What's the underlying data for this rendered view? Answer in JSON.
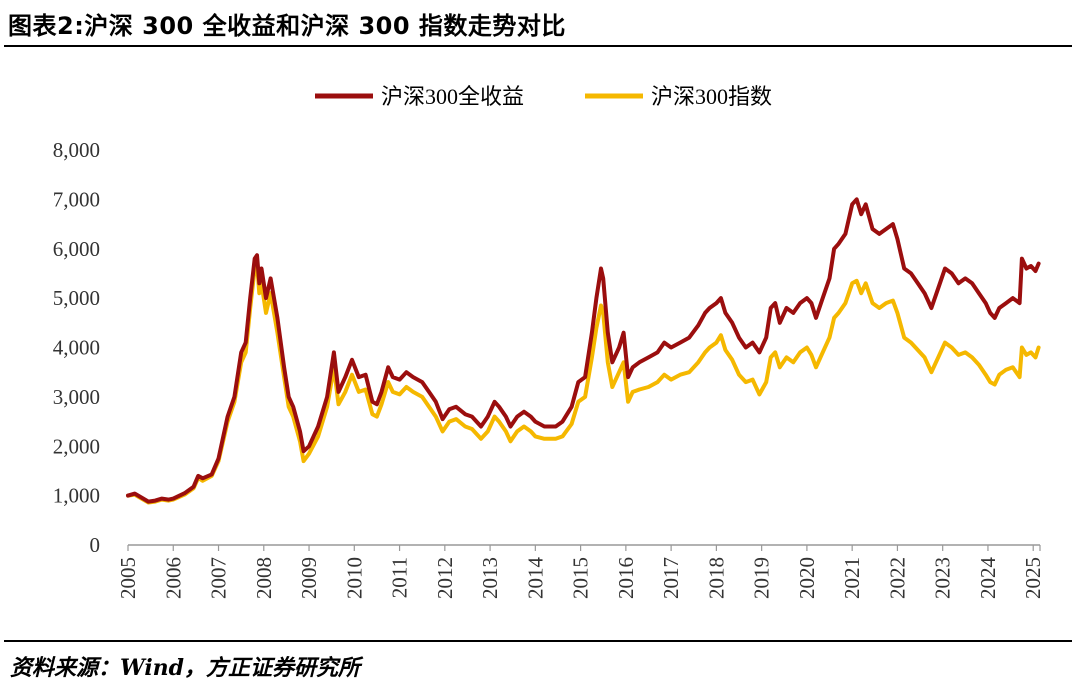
{
  "title": "图表2:沪深 300 全收益和沪深 300 指数走势对比",
  "source": "资料来源：Wind，方正证券研究所",
  "colors": {
    "total_return": "#9B0E0E",
    "index": "#F5B800",
    "axis": "#999999",
    "text": "#000000"
  },
  "chart_data": {
    "type": "line",
    "title": "沪深 300 全收益和沪深 300 指数走势对比",
    "xlabel": "",
    "ylabel": "",
    "xlim": [
      2005,
      2025.15
    ],
    "ylim": [
      0,
      8000
    ],
    "y_ticks": [
      "0",
      "1,000",
      "2,000",
      "3,000",
      "4,000",
      "5,000",
      "6,000",
      "7,000",
      "8,000"
    ],
    "x_ticks": [
      "2005",
      "2006",
      "2007",
      "2008",
      "2009",
      "2010",
      "2011",
      "2012",
      "2013",
      "2014",
      "2015",
      "2016",
      "2017",
      "2018",
      "2019",
      "2020",
      "2021",
      "2022",
      "2023",
      "2024",
      "2025"
    ],
    "legend": {
      "position": "top-center"
    },
    "series": [
      {
        "name": "沪深300全收益",
        "color": "#9B0E0E",
        "points": [
          [
            2005.0,
            1000
          ],
          [
            2005.15,
            1040
          ],
          [
            2005.3,
            960
          ],
          [
            2005.45,
            880
          ],
          [
            2005.6,
            900
          ],
          [
            2005.75,
            940
          ],
          [
            2005.9,
            920
          ],
          [
            2006.0,
            940
          ],
          [
            2006.25,
            1050
          ],
          [
            2006.45,
            1180
          ],
          [
            2006.55,
            1400
          ],
          [
            2006.65,
            1350
          ],
          [
            2006.85,
            1430
          ],
          [
            2007.0,
            1750
          ],
          [
            2007.2,
            2600
          ],
          [
            2007.35,
            3000
          ],
          [
            2007.5,
            3900
          ],
          [
            2007.6,
            4100
          ],
          [
            2007.7,
            5000
          ],
          [
            2007.8,
            5800
          ],
          [
            2007.85,
            5870
          ],
          [
            2007.9,
            5300
          ],
          [
            2007.95,
            5600
          ],
          [
            2008.05,
            5000
          ],
          [
            2008.15,
            5400
          ],
          [
            2008.3,
            4600
          ],
          [
            2008.45,
            3600
          ],
          [
            2008.55,
            3000
          ],
          [
            2008.65,
            2800
          ],
          [
            2008.8,
            2300
          ],
          [
            2008.88,
            1900
          ],
          [
            2009.0,
            2000
          ],
          [
            2009.2,
            2400
          ],
          [
            2009.4,
            3000
          ],
          [
            2009.55,
            3900
          ],
          [
            2009.65,
            3100
          ],
          [
            2009.8,
            3400
          ],
          [
            2009.95,
            3750
          ],
          [
            2010.1,
            3400
          ],
          [
            2010.25,
            3450
          ],
          [
            2010.4,
            2900
          ],
          [
            2010.5,
            2850
          ],
          [
            2010.6,
            3100
          ],
          [
            2010.75,
            3600
          ],
          [
            2010.85,
            3400
          ],
          [
            2011.0,
            3350
          ],
          [
            2011.15,
            3500
          ],
          [
            2011.3,
            3400
          ],
          [
            2011.5,
            3300
          ],
          [
            2011.65,
            3100
          ],
          [
            2011.8,
            2900
          ],
          [
            2011.95,
            2550
          ],
          [
            2012.1,
            2750
          ],
          [
            2012.25,
            2800
          ],
          [
            2012.45,
            2650
          ],
          [
            2012.6,
            2600
          ],
          [
            2012.8,
            2400
          ],
          [
            2012.95,
            2600
          ],
          [
            2013.1,
            2900
          ],
          [
            2013.2,
            2800
          ],
          [
            2013.35,
            2600
          ],
          [
            2013.45,
            2400
          ],
          [
            2013.6,
            2600
          ],
          [
            2013.75,
            2700
          ],
          [
            2013.9,
            2600
          ],
          [
            2014.0,
            2500
          ],
          [
            2014.2,
            2400
          ],
          [
            2014.45,
            2400
          ],
          [
            2014.6,
            2500
          ],
          [
            2014.8,
            2800
          ],
          [
            2014.95,
            3300
          ],
          [
            2015.1,
            3400
          ],
          [
            2015.25,
            4300
          ],
          [
            2015.35,
            5000
          ],
          [
            2015.45,
            5600
          ],
          [
            2015.5,
            5400
          ],
          [
            2015.6,
            4300
          ],
          [
            2015.7,
            3700
          ],
          [
            2015.85,
            4000
          ],
          [
            2015.95,
            4300
          ],
          [
            2016.05,
            3400
          ],
          [
            2016.15,
            3600
          ],
          [
            2016.3,
            3700
          ],
          [
            2016.5,
            3800
          ],
          [
            2016.7,
            3900
          ],
          [
            2016.85,
            4100
          ],
          [
            2017.0,
            4000
          ],
          [
            2017.2,
            4100
          ],
          [
            2017.4,
            4200
          ],
          [
            2017.6,
            4450
          ],
          [
            2017.75,
            4700
          ],
          [
            2017.85,
            4800
          ],
          [
            2018.0,
            4900
          ],
          [
            2018.1,
            5000
          ],
          [
            2018.2,
            4700
          ],
          [
            2018.35,
            4500
          ],
          [
            2018.5,
            4200
          ],
          [
            2018.65,
            4000
          ],
          [
            2018.8,
            4100
          ],
          [
            2018.95,
            3900
          ],
          [
            2019.1,
            4200
          ],
          [
            2019.2,
            4800
          ],
          [
            2019.3,
            4900
          ],
          [
            2019.4,
            4500
          ],
          [
            2019.55,
            4800
          ],
          [
            2019.7,
            4700
          ],
          [
            2019.85,
            4900
          ],
          [
            2020.0,
            5000
          ],
          [
            2020.1,
            4900
          ],
          [
            2020.2,
            4600
          ],
          [
            2020.35,
            5000
          ],
          [
            2020.5,
            5400
          ],
          [
            2020.6,
            6000
          ],
          [
            2020.7,
            6100
          ],
          [
            2020.85,
            6300
          ],
          [
            2021.0,
            6900
          ],
          [
            2021.1,
            7000
          ],
          [
            2021.2,
            6700
          ],
          [
            2021.3,
            6900
          ],
          [
            2021.45,
            6400
          ],
          [
            2021.6,
            6300
          ],
          [
            2021.75,
            6400
          ],
          [
            2021.9,
            6500
          ],
          [
            2022.0,
            6200
          ],
          [
            2022.15,
            5600
          ],
          [
            2022.3,
            5500
          ],
          [
            2022.45,
            5300
          ],
          [
            2022.6,
            5100
          ],
          [
            2022.75,
            4800
          ],
          [
            2022.9,
            5200
          ],
          [
            2023.05,
            5600
          ],
          [
            2023.2,
            5500
          ],
          [
            2023.35,
            5300
          ],
          [
            2023.5,
            5400
          ],
          [
            2023.65,
            5300
          ],
          [
            2023.8,
            5100
          ],
          [
            2023.95,
            4900
          ],
          [
            2024.05,
            4700
          ],
          [
            2024.15,
            4600
          ],
          [
            2024.25,
            4800
          ],
          [
            2024.4,
            4900
          ],
          [
            2024.55,
            5000
          ],
          [
            2024.7,
            4900
          ],
          [
            2024.75,
            5800
          ],
          [
            2024.85,
            5600
          ],
          [
            2024.95,
            5650
          ],
          [
            2025.05,
            5550
          ],
          [
            2025.12,
            5700
          ]
        ]
      },
      {
        "name": "沪深300指数",
        "color": "#F5B800",
        "points": [
          [
            2005.0,
            1000
          ],
          [
            2005.15,
            1020
          ],
          [
            2005.3,
            940
          ],
          [
            2005.45,
            860
          ],
          [
            2005.6,
            880
          ],
          [
            2005.75,
            920
          ],
          [
            2005.9,
            900
          ],
          [
            2006.0,
            920
          ],
          [
            2006.25,
            1020
          ],
          [
            2006.45,
            1150
          ],
          [
            2006.55,
            1360
          ],
          [
            2006.65,
            1300
          ],
          [
            2006.85,
            1400
          ],
          [
            2007.0,
            1700
          ],
          [
            2007.2,
            2500
          ],
          [
            2007.35,
            2900
          ],
          [
            2007.5,
            3700
          ],
          [
            2007.6,
            3900
          ],
          [
            2007.7,
            4800
          ],
          [
            2007.8,
            5600
          ],
          [
            2007.85,
            5700
          ],
          [
            2007.9,
            5100
          ],
          [
            2007.95,
            5300
          ],
          [
            2008.05,
            4700
          ],
          [
            2008.15,
            5100
          ],
          [
            2008.3,
            4300
          ],
          [
            2008.45,
            3400
          ],
          [
            2008.55,
            2800
          ],
          [
            2008.65,
            2600
          ],
          [
            2008.8,
            2100
          ],
          [
            2008.88,
            1700
          ],
          [
            2009.0,
            1850
          ],
          [
            2009.2,
            2200
          ],
          [
            2009.4,
            2800
          ],
          [
            2009.55,
            3600
          ],
          [
            2009.65,
            2850
          ],
          [
            2009.8,
            3100
          ],
          [
            2009.95,
            3450
          ],
          [
            2010.1,
            3100
          ],
          [
            2010.25,
            3150
          ],
          [
            2010.4,
            2650
          ],
          [
            2010.5,
            2600
          ],
          [
            2010.6,
            2850
          ],
          [
            2010.75,
            3300
          ],
          [
            2010.85,
            3100
          ],
          [
            2011.0,
            3050
          ],
          [
            2011.15,
            3200
          ],
          [
            2011.3,
            3100
          ],
          [
            2011.5,
            3000
          ],
          [
            2011.65,
            2800
          ],
          [
            2011.8,
            2600
          ],
          [
            2011.95,
            2300
          ],
          [
            2012.1,
            2500
          ],
          [
            2012.25,
            2550
          ],
          [
            2012.45,
            2400
          ],
          [
            2012.6,
            2350
          ],
          [
            2012.8,
            2150
          ],
          [
            2012.95,
            2300
          ],
          [
            2013.1,
            2600
          ],
          [
            2013.2,
            2500
          ],
          [
            2013.35,
            2300
          ],
          [
            2013.45,
            2100
          ],
          [
            2013.6,
            2300
          ],
          [
            2013.75,
            2400
          ],
          [
            2013.9,
            2300
          ],
          [
            2014.0,
            2200
          ],
          [
            2014.2,
            2150
          ],
          [
            2014.45,
            2150
          ],
          [
            2014.6,
            2200
          ],
          [
            2014.8,
            2450
          ],
          [
            2014.95,
            2900
          ],
          [
            2015.1,
            3000
          ],
          [
            2015.25,
            3800
          ],
          [
            2015.35,
            4400
          ],
          [
            2015.45,
            4850
          ],
          [
            2015.5,
            4700
          ],
          [
            2015.6,
            3700
          ],
          [
            2015.7,
            3200
          ],
          [
            2015.85,
            3500
          ],
          [
            2015.95,
            3700
          ],
          [
            2016.05,
            2900
          ],
          [
            2016.15,
            3100
          ],
          [
            2016.3,
            3150
          ],
          [
            2016.5,
            3200
          ],
          [
            2016.7,
            3300
          ],
          [
            2016.85,
            3450
          ],
          [
            2017.0,
            3350
          ],
          [
            2017.2,
            3450
          ],
          [
            2017.4,
            3500
          ],
          [
            2017.6,
            3700
          ],
          [
            2017.75,
            3900
          ],
          [
            2017.85,
            4000
          ],
          [
            2018.0,
            4100
          ],
          [
            2018.1,
            4250
          ],
          [
            2018.2,
            3950
          ],
          [
            2018.35,
            3750
          ],
          [
            2018.5,
            3450
          ],
          [
            2018.65,
            3300
          ],
          [
            2018.8,
            3350
          ],
          [
            2018.95,
            3050
          ],
          [
            2019.1,
            3300
          ],
          [
            2019.2,
            3800
          ],
          [
            2019.3,
            3900
          ],
          [
            2019.4,
            3600
          ],
          [
            2019.55,
            3800
          ],
          [
            2019.7,
            3700
          ],
          [
            2019.85,
            3900
          ],
          [
            2020.0,
            4000
          ],
          [
            2020.1,
            3850
          ],
          [
            2020.2,
            3600
          ],
          [
            2020.35,
            3900
          ],
          [
            2020.5,
            4200
          ],
          [
            2020.6,
            4600
          ],
          [
            2020.7,
            4700
          ],
          [
            2020.85,
            4900
          ],
          [
            2021.0,
            5300
          ],
          [
            2021.1,
            5350
          ],
          [
            2021.2,
            5100
          ],
          [
            2021.3,
            5300
          ],
          [
            2021.45,
            4900
          ],
          [
            2021.6,
            4800
          ],
          [
            2021.75,
            4900
          ],
          [
            2021.9,
            4950
          ],
          [
            2022.0,
            4700
          ],
          [
            2022.15,
            4200
          ],
          [
            2022.3,
            4100
          ],
          [
            2022.45,
            3950
          ],
          [
            2022.6,
            3800
          ],
          [
            2022.75,
            3500
          ],
          [
            2022.9,
            3800
          ],
          [
            2023.05,
            4100
          ],
          [
            2023.2,
            4000
          ],
          [
            2023.35,
            3850
          ],
          [
            2023.5,
            3900
          ],
          [
            2023.65,
            3800
          ],
          [
            2023.8,
            3650
          ],
          [
            2023.95,
            3450
          ],
          [
            2024.05,
            3300
          ],
          [
            2024.15,
            3250
          ],
          [
            2024.25,
            3450
          ],
          [
            2024.4,
            3550
          ],
          [
            2024.55,
            3600
          ],
          [
            2024.7,
            3400
          ],
          [
            2024.75,
            4000
          ],
          [
            2024.85,
            3850
          ],
          [
            2024.95,
            3900
          ],
          [
            2025.05,
            3800
          ],
          [
            2025.12,
            4000
          ]
        ]
      }
    ]
  }
}
